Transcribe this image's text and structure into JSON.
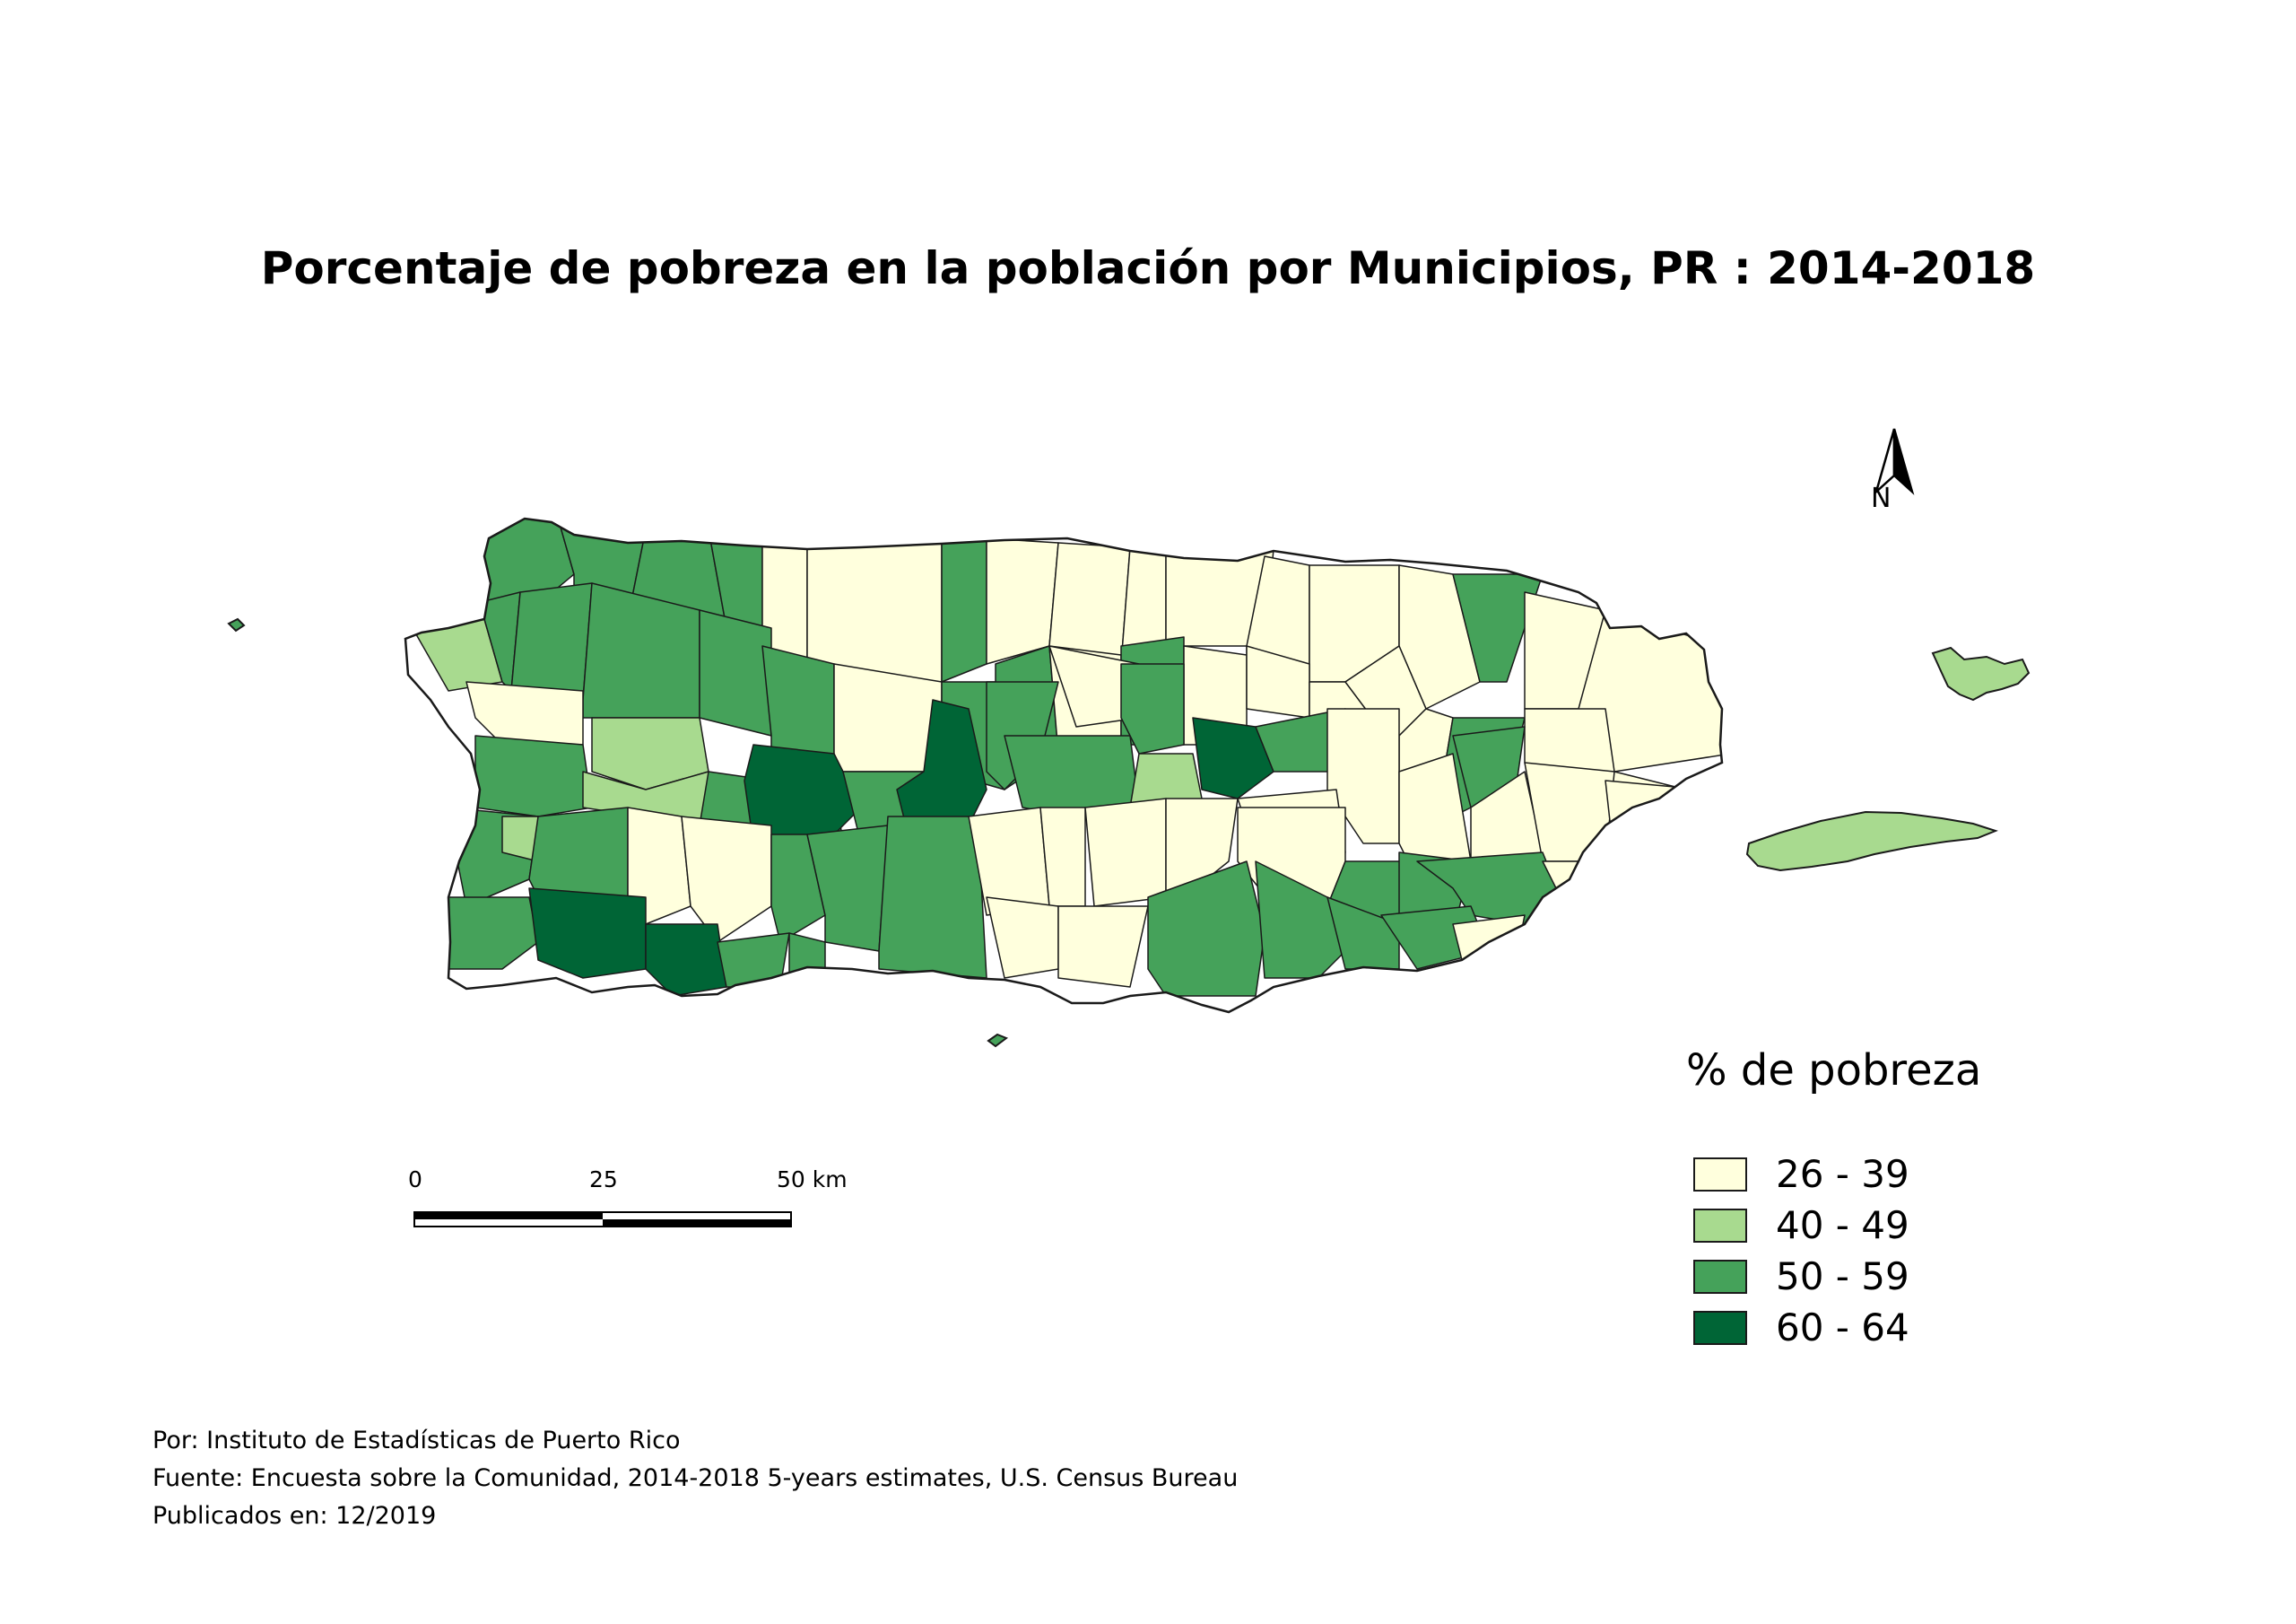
{
  "title": "Porcentaje de pobreza en la población por Municipios, PR : 2014-2018",
  "north_arrow": {
    "label": "N",
    "icon": "north-arrow-icon"
  },
  "legend": {
    "title": "% de pobreza",
    "items": [
      {
        "label": "26 - 39",
        "color": "#ffffdd"
      },
      {
        "label": "40 - 49",
        "color": "#a8da8f"
      },
      {
        "label": "50 - 59",
        "color": "#45a25a"
      },
      {
        "label": "60 - 64",
        "color": "#006536"
      }
    ]
  },
  "scale_bar": {
    "labels": [
      "0",
      "25",
      "50 km"
    ]
  },
  "credits": [
    "Por: Instituto de Estadísticas de Puerto Rico",
    "Fuente: Encuesta sobre la Comunidad, 2014-2018 5-years estimates, U.S. Census Bureau",
    "Publicados en: 12/2019"
  ],
  "colors": {
    "class1": "#ffffdd",
    "class2": "#a8da8f",
    "class3": "#45a25a",
    "class4": "#006536",
    "outline": "#1a1a1a"
  }
}
